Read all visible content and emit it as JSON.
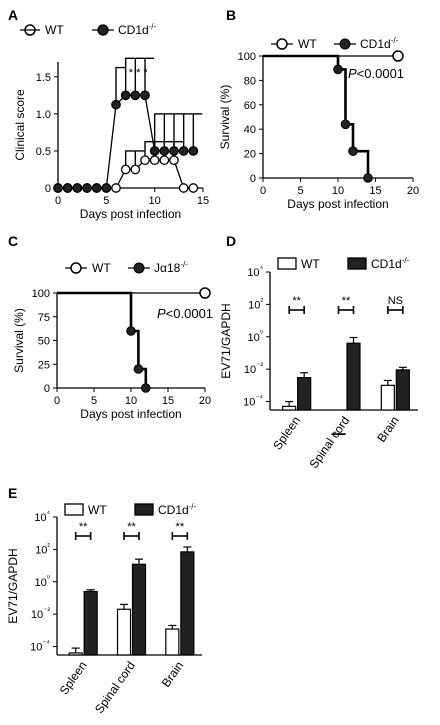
{
  "colors": {
    "ink": "#000000",
    "open_fill": "#ffffff",
    "closed_fill": "#222222"
  },
  "chart_data": [
    {
      "panel": "A",
      "type": "line",
      "xlabel": "Days post infection",
      "ylabel": "Clinical score",
      "xlim": [
        0,
        15
      ],
      "ylim": [
        0,
        1.7
      ],
      "xticks": [
        "0",
        "5",
        "10",
        "15"
      ],
      "yticks": [
        "0",
        "0.5",
        "1.0",
        "1.5"
      ],
      "annotation": "* * *",
      "series": [
        {
          "name": "WT",
          "marker": "open",
          "x": [
            0,
            1,
            2,
            3,
            4,
            5,
            6,
            7,
            8,
            9,
            10,
            11,
            12,
            13,
            14
          ],
          "y": [
            0,
            0,
            0,
            0,
            0,
            0,
            0,
            0.25,
            0.25,
            0.375,
            0.375,
            0.375,
            0.375,
            0,
            0
          ],
          "err": [
            0,
            0,
            0,
            0,
            0,
            0,
            0,
            0.25,
            0.25,
            0.25,
            0.25,
            0.25,
            0.25,
            0,
            0
          ]
        },
        {
          "name": "CD1d-/-",
          "marker": "closed",
          "x": [
            0,
            1,
            2,
            3,
            4,
            5,
            6,
            7,
            8,
            9,
            10,
            11,
            12,
            13,
            14
          ],
          "y": [
            0,
            0,
            0,
            0,
            0,
            0,
            1.125,
            1.25,
            1.25,
            1.25,
            0.5,
            0.5,
            0.5,
            0.5,
            0.5
          ],
          "err": [
            0,
            0,
            0,
            0,
            0,
            0,
            0.5,
            0.5,
            0.5,
            0.5,
            0.5,
            0.5,
            0.5,
            0.5,
            0.5
          ]
        }
      ]
    },
    {
      "panel": "B",
      "type": "line",
      "xlabel": "Days post infection",
      "ylabel": "Survival (%)",
      "xlim": [
        0,
        20
      ],
      "ylim": [
        0,
        100
      ],
      "xticks": [
        "0",
        "5",
        "10",
        "15",
        "20"
      ],
      "yticks": [
        "0",
        "20",
        "40",
        "60",
        "80",
        "100"
      ],
      "annotation": "P<0.0001",
      "series": [
        {
          "name": "WT",
          "marker": "open",
          "x": [
            0,
            18
          ],
          "y": [
            100,
            100
          ]
        },
        {
          "name": "CD1d-/-",
          "marker": "closed",
          "x": [
            0,
            10,
            11,
            12,
            14
          ],
          "y": [
            100,
            89,
            44,
            22,
            0
          ]
        }
      ]
    },
    {
      "panel": "C",
      "type": "line",
      "xlabel": "Days post infection",
      "ylabel": "Survival (%)",
      "xlim": [
        0,
        20
      ],
      "ylim": [
        0,
        100
      ],
      "xticks": [
        "0",
        "5",
        "10",
        "15",
        "20"
      ],
      "yticks": [
        "0",
        "25",
        "50",
        "75",
        "100"
      ],
      "annotation": "P<0.0001",
      "series": [
        {
          "name": "WT",
          "marker": "open",
          "x": [
            0,
            20
          ],
          "y": [
            100,
            100
          ]
        },
        {
          "name": "Jα18-/-",
          "marker": "closed",
          "x": [
            0,
            10,
            11,
            12
          ],
          "y": [
            100,
            60,
            20,
            0
          ]
        }
      ]
    },
    {
      "panel": "D",
      "type": "bar",
      "ylabel": "EV71/GAPDH",
      "log_scale": true,
      "ylim": [
        3e-05,
        10000
      ],
      "yticks": [
        "10⁻⁴",
        "10⁻²",
        "10⁰",
        "10²",
        "10⁴"
      ],
      "categories": [
        "Spleen",
        "Spinal cord",
        "Brain"
      ],
      "significance": [
        "**",
        "**",
        "NS"
      ],
      "series": [
        {
          "name": "WT",
          "fill": "open",
          "values": [
            5e-05,
            1e-06,
            0.001
          ],
          "err_high": [
            0.0001,
            1e-06,
            0.002
          ]
        },
        {
          "name": "CD1d-/-",
          "fill": "closed",
          "values": [
            0.003,
            0.4,
            0.009
          ],
          "err_high": [
            0.006,
            0.9,
            0.013
          ]
        }
      ]
    },
    {
      "panel": "E",
      "type": "bar",
      "ylabel": "EV71/GAPDH",
      "log_scale": true,
      "ylim": [
        3e-05,
        10000
      ],
      "yticks": [
        "10⁻⁴",
        "10⁻²",
        "10⁰",
        "10²",
        "10⁴"
      ],
      "categories": [
        "Spleen",
        "Spinal cord",
        "Brain"
      ],
      "significance": [
        "**",
        "**",
        "**"
      ],
      "series": [
        {
          "name": "WT",
          "fill": "open",
          "values": [
            4e-05,
            0.02,
            0.0012
          ],
          "err_high": [
            8e-05,
            0.04,
            0.002
          ]
        },
        {
          "name": "CD1d-/-",
          "fill": "closed",
          "values": [
            0.25,
            12,
            70
          ],
          "err_high": [
            0.32,
            25,
            140
          ]
        }
      ]
    }
  ]
}
